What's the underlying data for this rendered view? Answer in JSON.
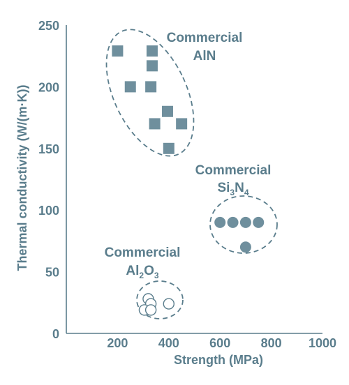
{
  "chart_data": {
    "type": "scatter",
    "xlabel": "Strength (MPa)",
    "ylabel": "Thermal conductivity (W/(m·K))",
    "xlim": [
      0,
      1000
    ],
    "ylim": [
      0,
      250
    ],
    "xticks": [
      "200",
      "400",
      "600",
      "800",
      "1000"
    ],
    "yticks": [
      "0",
      "50",
      "100",
      "150",
      "200",
      "250"
    ],
    "grid": false,
    "series": [
      {
        "label_line1": "Commercial",
        "label_line2": [
          "AlN"
        ],
        "marker": "square",
        "x": [
          200,
          335,
          335,
          250,
          330,
          395,
          345,
          450,
          400
        ],
        "y": [
          229,
          229,
          217,
          200,
          200,
          180,
          170,
          170,
          150
        ]
      },
      {
        "label_line1": "Commercial",
        "label_line2": [
          "Si",
          "3",
          "N",
          "4"
        ],
        "marker": "filled-circle",
        "x": [
          600,
          650,
          700,
          750,
          700
        ],
        "y": [
          90,
          90,
          90,
          90,
          70
        ]
      },
      {
        "label_line1": "Commercial",
        "label_line2": [
          "Al",
          "2",
          "O",
          "3"
        ],
        "marker": "open-circle",
        "x": [
          320,
          330,
          305,
          330,
          400
        ],
        "y": [
          28,
          24,
          19,
          19,
          24
        ]
      }
    ],
    "colors": {
      "ink": "#5a7d8c",
      "fill": "#6f8f9d",
      "background": "#ffffff"
    }
  }
}
